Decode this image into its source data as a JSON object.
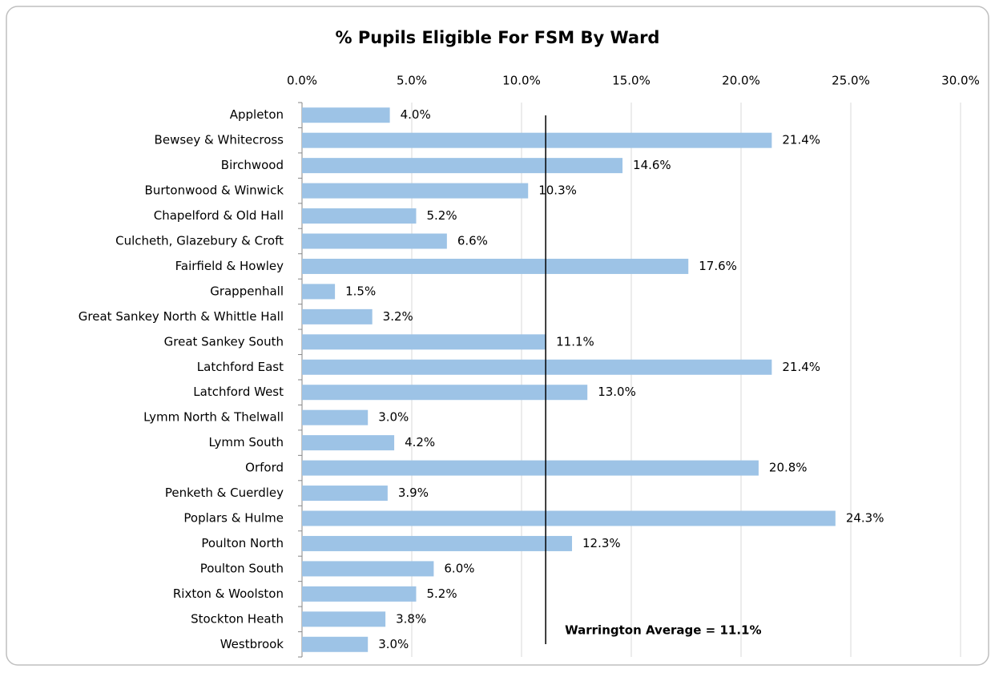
{
  "chart_data": {
    "type": "hbar",
    "title": "% Pupils Eligible For FSM By Ward",
    "categories": [
      "Appleton",
      "Bewsey & Whitecross",
      "Birchwood",
      "Burtonwood & Winwick",
      "Chapelford & Old Hall",
      "Culcheth, Glazebury & Croft",
      "Fairfield & Howley",
      "Grappenhall",
      "Great Sankey North & Whittle Hall",
      "Great Sankey South",
      "Latchford East",
      "Latchford West",
      "Lymm North & Thelwall",
      "Lymm South",
      "Orford",
      "Penketh & Cuerdley",
      "Poplars & Hulme",
      "Poulton North",
      "Poulton South",
      "Rixton & Woolston",
      "Stockton Heath",
      "Westbrook"
    ],
    "values": [
      4.0,
      21.4,
      14.6,
      10.3,
      5.2,
      6.6,
      17.6,
      1.5,
      3.2,
      11.1,
      21.4,
      13.0,
      3.0,
      4.2,
      20.8,
      3.9,
      24.3,
      12.3,
      6.0,
      5.2,
      3.8,
      3.0
    ],
    "value_labels": [
      "4.0%",
      "21.4%",
      "14.6%",
      "10.3%",
      "5.2%",
      "6.6%",
      "17.6%",
      "1.5%",
      "3.2%",
      "11.1%",
      "21.4%",
      "13.0%",
      "3.0%",
      "4.2%",
      "20.8%",
      "3.9%",
      "24.3%",
      "12.3%",
      "6.0%",
      "5.2%",
      "3.8%",
      "3.0%"
    ],
    "color": "#9dc3e6",
    "xlim": [
      0,
      30
    ],
    "xticks": [
      {
        "value": 0,
        "label": "0.0%"
      },
      {
        "value": 5,
        "label": "5.0%"
      },
      {
        "value": 10,
        "label": "10.0%"
      },
      {
        "value": 15,
        "label": "15.0%"
      },
      {
        "value": 20,
        "label": "20.0%"
      },
      {
        "value": 25,
        "label": "25.0%"
      },
      {
        "value": 30,
        "label": "30.0%"
      }
    ],
    "grid": true,
    "average": {
      "value": 11.1,
      "label": "Warrington Average = 11.1%"
    }
  }
}
